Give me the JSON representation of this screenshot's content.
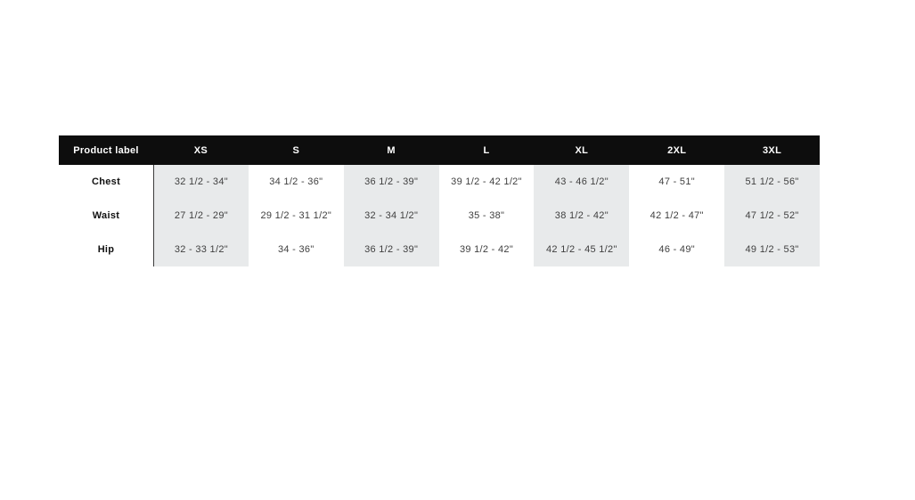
{
  "size_chart": {
    "header": {
      "label_column": "Product label",
      "sizes": [
        "XS",
        "S",
        "M",
        "L",
        "XL",
        "2XL",
        "3XL"
      ]
    },
    "rows": [
      {
        "label": "Chest",
        "values": [
          "32 1/2 - 34\"",
          "34 1/2 - 36\"",
          "36 1/2 - 39\"",
          "39 1/2 - 42 1/2\"",
          "43 - 46 1/2\"",
          "47 - 51\"",
          "51 1/2 - 56\""
        ]
      },
      {
        "label": "Waist",
        "values": [
          "27 1/2 - 29\"",
          "29 1/2 - 31 1/2\"",
          "32 - 34 1/2\"",
          "35 - 38\"",
          "38 1/2 - 42\"",
          "42 1/2 - 47\"",
          "47 1/2 - 52\""
        ]
      },
      {
        "label": "Hip",
        "values": [
          "32 - 33 1/2\"",
          "34 - 36\"",
          "36 1/2 - 39\"",
          "39 1/2 - 42\"",
          "42 1/2 - 45 1/2\"",
          "46 - 49\"",
          "49 1/2 - 53\""
        ]
      }
    ],
    "colors": {
      "header_bg": "#0d0d0d",
      "header_text": "#ffffff",
      "shaded_column_bg": "#e8eaeb",
      "body_text": "#3f3f3f",
      "row_label_text": "#111111",
      "divider_line": "#3c3c3c",
      "page_bg": "#ffffff"
    }
  }
}
